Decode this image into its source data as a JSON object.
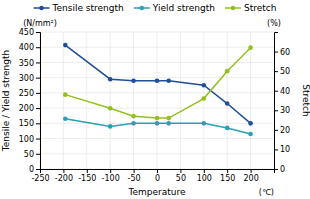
{
  "chart_data": {
    "type": "line",
    "xlabel": "Temperature",
    "ylabel": "Tensile / Yield strength",
    "y2label": "Stretch",
    "annotations": [
      "(N/mm²)",
      "(%)",
      "(℃)"
    ],
    "x": [
      -196,
      -100,
      -50,
      0,
      25,
      100,
      150,
      200
    ],
    "series": [
      {
        "name": "Tensile strength",
        "color": "#1F4E9A",
        "values": [
          407,
          295,
          290,
          290,
          290,
          275,
          215,
          150
        ]
      },
      {
        "name": "Yield strength",
        "color": "#2BA0B4",
        "values": [
          165,
          140,
          150,
          150,
          150,
          150,
          135,
          115
        ]
      },
      {
        "name": "Stretch",
        "color": "#92C01F",
        "values": [
          38,
          31,
          27,
          26,
          26,
          36,
          50,
          62
        ],
        "axis": "y2"
      }
    ],
    "xlim": [
      -250,
      250
    ],
    "xticks": [
      -250,
      -200,
      -150,
      -100,
      -50,
      0,
      50,
      100,
      150,
      200
    ],
    "ylim": [
      0,
      450
    ],
    "yticks": [
      0,
      50,
      100,
      150,
      200,
      250,
      300,
      350,
      400,
      450
    ],
    "y2lim": [
      0,
      70
    ],
    "y2ticks": [
      0,
      10,
      20,
      30,
      40,
      50,
      60
    ],
    "grid": true,
    "legend": "top",
    "marker": "circle"
  }
}
